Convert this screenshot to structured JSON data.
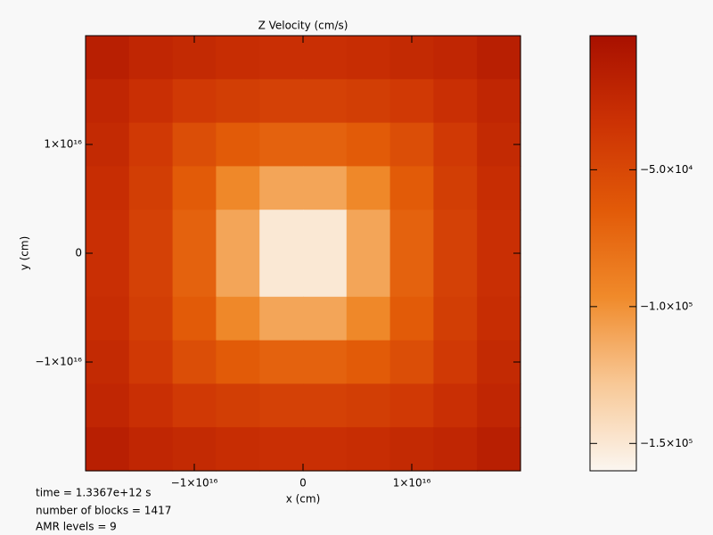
{
  "chart_data": {
    "type": "heatmap",
    "title": "Z Velocity (cm/s)",
    "x_label": "x (cm)",
    "y_label": "y (cm)",
    "xlim": [
      -2e+16,
      2e+16
    ],
    "ylim": [
      -2e+16,
      2e+16
    ],
    "xticks": [
      {
        "value": -1e+16,
        "label": "−1×10¹⁶"
      },
      0,
      {
        "value": 1e+16,
        "label": "1×10¹⁶"
      }
    ],
    "yticks": [
      {
        "value": -1e+16,
        "label": "−1×10¹⁶"
      },
      0,
      {
        "value": 1e+16,
        "label": "1×10¹⁶"
      }
    ],
    "zlim": [
      -160000,
      -1000
    ],
    "zticks": [
      {
        "value": -50000,
        "label": "−5.0×10⁴"
      },
      {
        "value": -100000,
        "label": "−1.0×10⁵"
      },
      {
        "value": -150000,
        "label": "−1.5×10⁵"
      }
    ],
    "colormap": [
      "#fbf6f0",
      "#f8c896",
      "#f08a2a",
      "#e25a08",
      "#cc3204",
      "#a81000"
    ],
    "z": [
      [
        -15000,
        -22000,
        -25000,
        -28000,
        -30000,
        -30000,
        -28000,
        -25000,
        -22000,
        -15000
      ],
      [
        -22000,
        -30000,
        -38000,
        -42000,
        -45000,
        -45000,
        -42000,
        -38000,
        -30000,
        -22000
      ],
      [
        -25000,
        -38000,
        -55000,
        -65000,
        -70000,
        -70000,
        -65000,
        -55000,
        -38000,
        -25000
      ],
      [
        -28000,
        -42000,
        -65000,
        -95000,
        -110000,
        -110000,
        -95000,
        -65000,
        -42000,
        -28000
      ],
      [
        -30000,
        -45000,
        -70000,
        -110000,
        -150000,
        -150000,
        -110000,
        -70000,
        -45000,
        -30000
      ],
      [
        -30000,
        -45000,
        -70000,
        -110000,
        -150000,
        -150000,
        -110000,
        -70000,
        -45000,
        -30000
      ],
      [
        -28000,
        -42000,
        -65000,
        -95000,
        -110000,
        -110000,
        -95000,
        -65000,
        -42000,
        -28000
      ],
      [
        -25000,
        -38000,
        -55000,
        -65000,
        -70000,
        -70000,
        -65000,
        -55000,
        -38000,
        -25000
      ],
      [
        -22000,
        -30000,
        -38000,
        -42000,
        -45000,
        -45000,
        -42000,
        -38000,
        -30000,
        -22000
      ],
      [
        -15000,
        -22000,
        -25000,
        -28000,
        -30000,
        -30000,
        -28000,
        -25000,
        -22000,
        -15000
      ]
    ],
    "annotations": [
      "time =  1.3367e+12 s",
      "number of blocks =    1417",
      "AMR levels =     9"
    ]
  }
}
